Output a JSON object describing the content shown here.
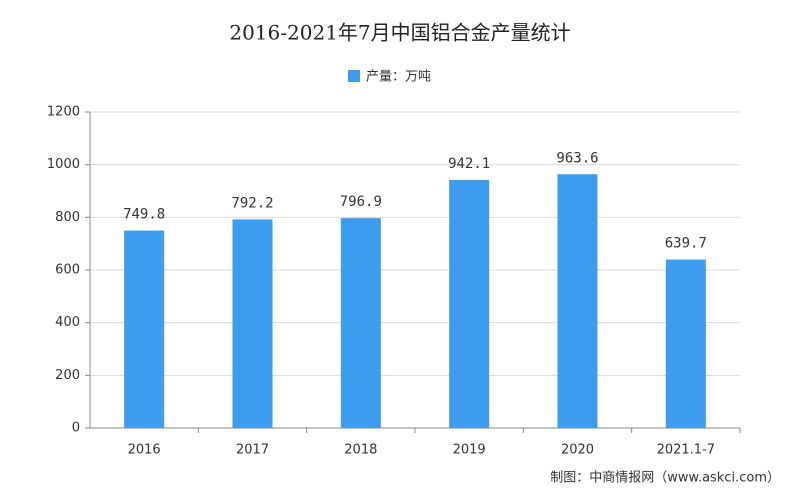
{
  "chart_data": {
    "type": "bar",
    "title": "2016-2021年7月中国铝合金产量统计",
    "categories": [
      "2016",
      "2017",
      "2018",
      "2019",
      "2020",
      "2021.1-7"
    ],
    "series": [
      {
        "name": "产量：万吨",
        "color": "#3b9cf0",
        "values": [
          749.8,
          792.2,
          796.9,
          942.1,
          963.6,
          639.7
        ]
      }
    ],
    "ylim": [
      0,
      1200
    ],
    "yticks": [
      0,
      200,
      400,
      600,
      800,
      1000,
      1200
    ],
    "grid": true,
    "source": "制图：中商情报网（www.askci.com）"
  }
}
